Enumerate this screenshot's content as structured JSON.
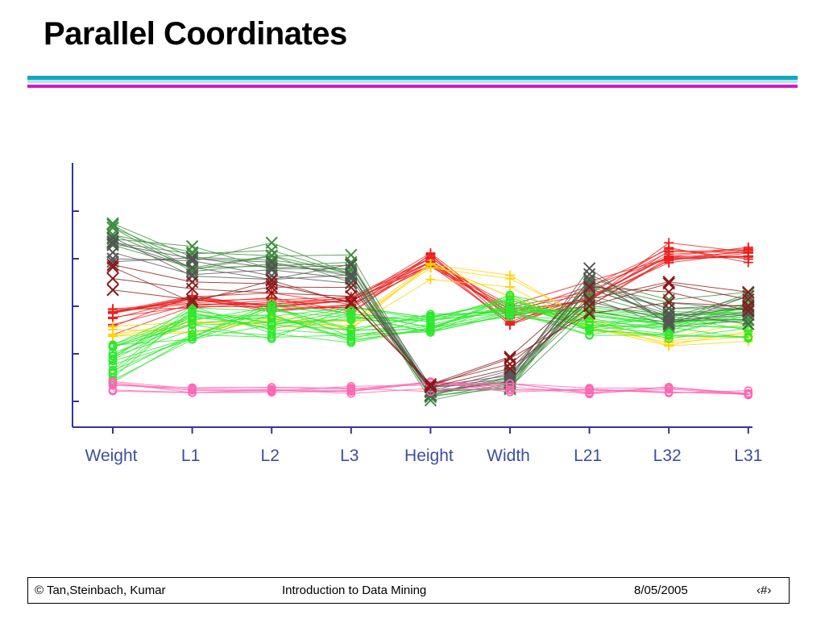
{
  "slide": {
    "title": "Parallel Coordinates",
    "rule_colors": [
      "#11a8c8",
      "#b7e3ee",
      "#d01bc8"
    ]
  },
  "footer": {
    "copyright": "© Tan,Steinbach, Kumar",
    "course": "Introduction to Data Mining",
    "date": "8/05/2005",
    "page": "‹#›"
  },
  "chart_data": {
    "type": "parallel-coordinates",
    "axes": [
      "Weight",
      "L1",
      "L2",
      "L3",
      "Height",
      "Width",
      "L21",
      "L32",
      "L31"
    ],
    "y_range": [
      0,
      1
    ],
    "y_ticks": [
      0.0,
      0.25,
      0.5,
      0.75,
      1.0
    ],
    "grid": false,
    "legend": "none",
    "series": [
      {
        "color": "#e8211e",
        "marker": "plus",
        "profile": [
          0.42,
          0.52,
          0.52,
          0.5,
          0.74,
          0.46,
          0.58,
          0.78,
          0.76
        ],
        "jitter": [
          0.07,
          0.05,
          0.05,
          0.05,
          0.04,
          0.06,
          0.08,
          0.07,
          0.06
        ],
        "count": 14
      },
      {
        "color": "#ffd500",
        "marker": "plus",
        "profile": [
          0.38,
          0.4,
          0.4,
          0.4,
          0.7,
          0.58,
          0.4,
          0.34,
          0.36
        ],
        "jitter": [
          0.05,
          0.05,
          0.05,
          0.05,
          0.06,
          0.1,
          0.05,
          0.06,
          0.06
        ],
        "count": 5
      },
      {
        "color": "#2ee82e",
        "marker": "circle",
        "profile": [
          0.2,
          0.42,
          0.42,
          0.4,
          0.41,
          0.5,
          0.42,
          0.4,
          0.42
        ],
        "jitter": [
          0.1,
          0.1,
          0.1,
          0.1,
          0.05,
          0.06,
          0.09,
          0.08,
          0.1
        ],
        "count": 22
      },
      {
        "color": "#3c8f3c",
        "marker": "x",
        "profile": [
          0.88,
          0.76,
          0.76,
          0.7,
          0.03,
          0.1,
          0.56,
          0.46,
          0.5
        ],
        "jitter": [
          0.06,
          0.08,
          0.08,
          0.08,
          0.03,
          0.04,
          0.1,
          0.08,
          0.08
        ],
        "count": 9
      },
      {
        "color": "#555555",
        "marker": "x",
        "profile": [
          0.8,
          0.7,
          0.7,
          0.68,
          0.06,
          0.14,
          0.62,
          0.45,
          0.48
        ],
        "jitter": [
          0.07,
          0.06,
          0.06,
          0.06,
          0.03,
          0.05,
          0.1,
          0.08,
          0.08
        ],
        "count": 6
      },
      {
        "color": "#ff66b3",
        "marker": "circle",
        "profile": [
          0.08,
          0.06,
          0.06,
          0.06,
          0.08,
          0.07,
          0.05,
          0.06,
          0.05
        ],
        "jitter": [
          0.03,
          0.02,
          0.02,
          0.02,
          0.03,
          0.03,
          0.02,
          0.02,
          0.02
        ],
        "count": 7
      },
      {
        "color": "#8b1a1a",
        "marker": "x",
        "profile": [
          0.62,
          0.58,
          0.58,
          0.56,
          0.08,
          0.2,
          0.54,
          0.55,
          0.5
        ],
        "jitter": [
          0.1,
          0.06,
          0.06,
          0.06,
          0.03,
          0.06,
          0.08,
          0.08,
          0.08
        ],
        "count": 4
      }
    ]
  }
}
